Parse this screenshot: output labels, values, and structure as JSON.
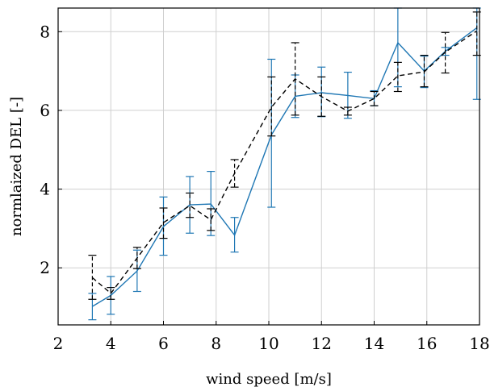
{
  "chart_data": {
    "type": "line",
    "xlabel": "wind speed [m/s]",
    "ylabel": "normlaized DEL [-]",
    "xlim": [
      2,
      18
    ],
    "ylim": [
      0.55,
      8.6
    ],
    "xticks": [
      2,
      4,
      6,
      8,
      10,
      12,
      14,
      16,
      18
    ],
    "yticks": [
      2,
      4,
      6,
      8
    ],
    "grid": true,
    "legend": "none",
    "series": [
      {
        "style": "solid",
        "color": "#1f77b4",
        "points": [
          {
            "x": 3.3,
            "y": 1.02,
            "lo": 0.68,
            "hi": 1.35
          },
          {
            "x": 4.0,
            "y": 1.3,
            "lo": 0.82,
            "hi": 1.78
          },
          {
            "x": 5.0,
            "y": 1.92,
            "lo": 1.4,
            "hi": 2.45
          },
          {
            "x": 6.0,
            "y": 3.05,
            "lo": 2.32,
            "hi": 3.8
          },
          {
            "x": 7.0,
            "y": 3.6,
            "lo": 2.88,
            "hi": 4.32
          },
          {
            "x": 7.8,
            "y": 3.62,
            "lo": 2.82,
            "hi": 4.45
          },
          {
            "x": 8.7,
            "y": 2.83,
            "lo": 2.4,
            "hi": 3.28
          },
          {
            "x": 10.1,
            "y": 5.38,
            "lo": 3.54,
            "hi": 7.3
          },
          {
            "x": 11.0,
            "y": 6.36,
            "lo": 5.82,
            "hi": 6.9
          },
          {
            "x": 12.0,
            "y": 6.45,
            "lo": 5.84,
            "hi": 7.1
          },
          {
            "x": 13.0,
            "y": 6.38,
            "lo": 5.8,
            "hi": 6.97
          },
          {
            "x": 14.0,
            "y": 6.3,
            "lo": 6.12,
            "hi": 6.5
          },
          {
            "x": 14.9,
            "y": 7.72,
            "lo": 6.6,
            "hi": 8.6
          },
          {
            "x": 15.9,
            "y": 7.0,
            "lo": 6.58,
            "hi": 7.38
          },
          {
            "x": 16.7,
            "y": 7.5,
            "lo": 7.4,
            "hi": 7.6
          },
          {
            "x": 17.9,
            "y": 8.1,
            "lo": 6.28,
            "hi": 8.6
          }
        ]
      },
      {
        "style": "dashed",
        "color": "#000000",
        "points": [
          {
            "x": 3.3,
            "y": 1.75,
            "lo": 1.2,
            "hi": 2.32
          },
          {
            "x": 4.0,
            "y": 1.35,
            "lo": 1.2,
            "hi": 1.5
          },
          {
            "x": 5.0,
            "y": 2.25,
            "lo": 1.98,
            "hi": 2.52
          },
          {
            "x": 6.0,
            "y": 3.15,
            "lo": 2.75,
            "hi": 3.52
          },
          {
            "x": 7.0,
            "y": 3.58,
            "lo": 3.28,
            "hi": 3.9
          },
          {
            "x": 7.8,
            "y": 3.22,
            "lo": 2.95,
            "hi": 3.5
          },
          {
            "x": 8.7,
            "y": 4.4,
            "lo": 4.05,
            "hi": 4.75
          },
          {
            "x": 10.1,
            "y": 6.08,
            "lo": 5.35,
            "hi": 6.85
          },
          {
            "x": 11.0,
            "y": 6.8,
            "lo": 5.88,
            "hi": 7.72
          },
          {
            "x": 12.0,
            "y": 6.35,
            "lo": 5.85,
            "hi": 6.85
          },
          {
            "x": 13.0,
            "y": 5.98,
            "lo": 5.88,
            "hi": 6.08
          },
          {
            "x": 14.0,
            "y": 6.3,
            "lo": 6.12,
            "hi": 6.48
          },
          {
            "x": 14.9,
            "y": 6.88,
            "lo": 6.48,
            "hi": 7.22
          },
          {
            "x": 15.9,
            "y": 6.98,
            "lo": 6.6,
            "hi": 7.4
          },
          {
            "x": 16.7,
            "y": 7.48,
            "lo": 6.95,
            "hi": 7.98
          },
          {
            "x": 17.9,
            "y": 8.02,
            "lo": 7.4,
            "hi": 8.5
          }
        ]
      }
    ]
  }
}
